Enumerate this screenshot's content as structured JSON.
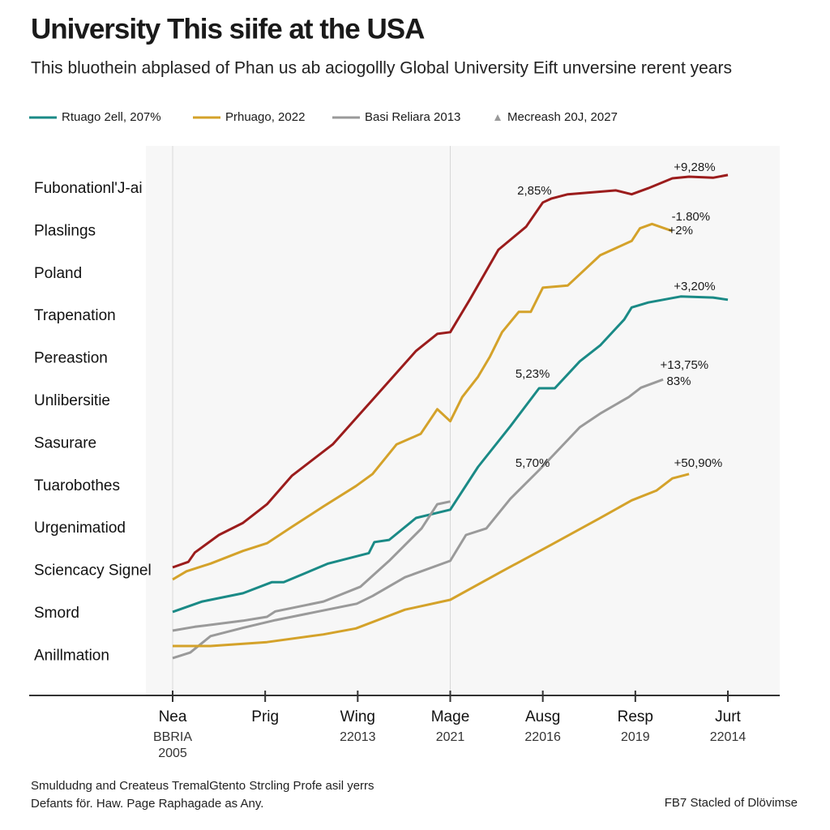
{
  "chart_data": {
    "type": "line",
    "title": "University This siife at the USA",
    "subtitle": "This bluothein abplased of Phan us ab aciogollly Global University Eift unversine rerent years",
    "row_labels": [
      "Fubonationl'J-ai",
      "Plaslings",
      "Poland",
      "Trapenation",
      "Pereastion",
      "Unlibersitie",
      "Sasurare",
      "Tuarobothes",
      "Urgenimatiod",
      "Sciencacy Signel",
      "Smord",
      "Anillmation"
    ],
    "categories": [
      "Nea",
      "Prig",
      "Wing",
      "Mage",
      "Ausg",
      "Resp",
      "Jurt"
    ],
    "x_sublabels": [
      [
        "BBRIA",
        "2005"
      ],
      [],
      [
        "22013"
      ],
      [
        "2021"
      ],
      [
        "22016"
      ],
      [
        "2019"
      ],
      [
        "22014"
      ]
    ],
    "xlim": [
      0,
      6
    ],
    "ylim": [
      0,
      100
    ],
    "xgrid": [
      0,
      3
    ],
    "series": [
      {
        "color": "#9b1c1c",
        "x": [
          0,
          0.17,
          0.24,
          0.5,
          0.76,
          1.02,
          1.29,
          1.73,
          2.16,
          2.63,
          2.86,
          3.0,
          3.21,
          3.52,
          3.82,
          4.0,
          4.09,
          4.27,
          4.79,
          4.96,
          5.14,
          5.4,
          5.58,
          5.84,
          6.0
        ],
        "values": [
          23.3,
          24.3,
          26.0,
          29.2,
          31.4,
          34.8,
          40.0,
          45.7,
          53.8,
          62.7,
          65.8,
          66.1,
          72.0,
          81.1,
          85.3,
          89.7,
          90.4,
          91.2,
          91.9,
          91.2,
          92.3,
          94.1,
          94.4,
          94.2,
          94.7
        ]
      },
      {
        "name": "Prhuago, 2022",
        "color": "#d4a22a",
        "legend_color": "#8b1a1a",
        "x": [
          0,
          0.15,
          0.41,
          0.76,
          1.02,
          1.29,
          1.63,
          1.98,
          2.16,
          2.42,
          2.68,
          2.86,
          3.0,
          3.13,
          3.3,
          3.43,
          3.56,
          3.74,
          3.87,
          4.0,
          4.27,
          4.62,
          4.96,
          5.05,
          5.18,
          5.4
        ],
        "values": [
          21.1,
          22.6,
          24.0,
          26.3,
          27.7,
          30.7,
          34.4,
          38.1,
          40.3,
          45.7,
          47.6,
          52.1,
          49.9,
          54.3,
          58.0,
          61.7,
          66.1,
          69.8,
          69.8,
          74.2,
          74.6,
          80.1,
          82.7,
          85.0,
          85.8,
          84.5
        ]
      },
      {
        "name": "Rtuago 2ell, 207%",
        "color": "#1a8a86",
        "legend_color": "#1a7a76",
        "x": [
          0,
          0.32,
          0.76,
          1.07,
          1.2,
          1.68,
          2.12,
          2.18,
          2.34,
          2.63,
          3.0,
          3.3,
          3.65,
          3.96,
          4.13,
          4.4,
          4.62,
          4.88,
          4.96,
          5.14,
          5.49,
          5.84,
          6.0
        ],
        "values": [
          15.2,
          17.1,
          18.6,
          20.6,
          20.6,
          24.0,
          25.9,
          27.9,
          28.3,
          32.3,
          33.8,
          41.6,
          49.0,
          55.9,
          55.9,
          60.8,
          63.7,
          68.4,
          70.6,
          71.5,
          72.6,
          72.4,
          72.0
        ]
      },
      {
        "name": "Basi Reliara 2013",
        "color": "#9a9a9a",
        "legend_color": "#222222",
        "x": [
          0,
          0.24,
          0.76,
          1.02,
          1.11,
          1.63,
          2.03,
          2.34,
          2.69,
          2.86,
          3.0
        ],
        "values": [
          11.8,
          12.5,
          13.6,
          14.3,
          15.3,
          17.1,
          19.8,
          24.5,
          30.4,
          34.8,
          35.3
        ]
      },
      {
        "name": "Mecreash 20J, 2027",
        "color": "#9a9a9a",
        "legend_color": "#222222",
        "legend_symbol": "triangle",
        "x": [
          0,
          0.19,
          0.41,
          0.76,
          1.11,
          1.99,
          2.16,
          2.51,
          3.0,
          3.17,
          3.39,
          3.65,
          3.96,
          4.4,
          4.62,
          4.93,
          5.06,
          5.3
        ],
        "values": [
          6.8,
          7.8,
          10.8,
          12.3,
          13.7,
          16.7,
          18.1,
          21.5,
          24.5,
          29.2,
          30.4,
          35.8,
          41.0,
          48.8,
          51.3,
          54.3,
          56.0,
          57.5
        ]
      },
      {
        "color": "#d4a22a",
        "x": [
          0,
          0.41,
          1.02,
          1.63,
          1.98,
          2.51,
          3.0,
          3.56,
          4.09,
          4.61,
          4.96,
          5.23,
          5.4,
          5.58
        ],
        "values": [
          9.0,
          9.0,
          9.7,
          11.1,
          12.2,
          15.6,
          17.4,
          22.6,
          27.4,
          32.2,
          35.5,
          37.3,
          39.5,
          40.3
        ]
      }
    ],
    "annotations": [
      {
        "text": "+9,28%",
        "x": 5.64,
        "y": 96.0,
        "color": "#8b1a1a"
      },
      {
        "text": "2,85%",
        "x": 3.91,
        "y": 91.7,
        "color": "#8b1a1a"
      },
      {
        "text": "-1.80%",
        "x": 5.6,
        "y": 87.0,
        "color": "#c48a12"
      },
      {
        "text": "+2%",
        "x": 5.49,
        "y": 84.5,
        "color": "#c48a12"
      },
      {
        "text": "+3,20%",
        "x": 5.64,
        "y": 74.3,
        "color": "#1a7a76"
      },
      {
        "text": "5,23%",
        "x": 3.89,
        "y": 58.4,
        "color": "#444444"
      },
      {
        "text": "+13,75%",
        "x": 5.53,
        "y": 60.0,
        "color": "#444444"
      },
      {
        "text": "83%",
        "x": 5.47,
        "y": 57.1,
        "color": "#444444"
      },
      {
        "text": "5,70%",
        "x": 3.89,
        "y": 42.2,
        "color": "#444444"
      },
      {
        "text": "+50,90%",
        "x": 5.68,
        "y": 42.2,
        "color": "#c48a12"
      }
    ]
  },
  "footer": {
    "left": [
      "Smuldudng and Createus TremalGtento Strcling Profe asil yerrs",
      "Defants för. Haw. Page Raphagade as Any."
    ],
    "right": "FB7 Stacled of Dlövimse"
  }
}
